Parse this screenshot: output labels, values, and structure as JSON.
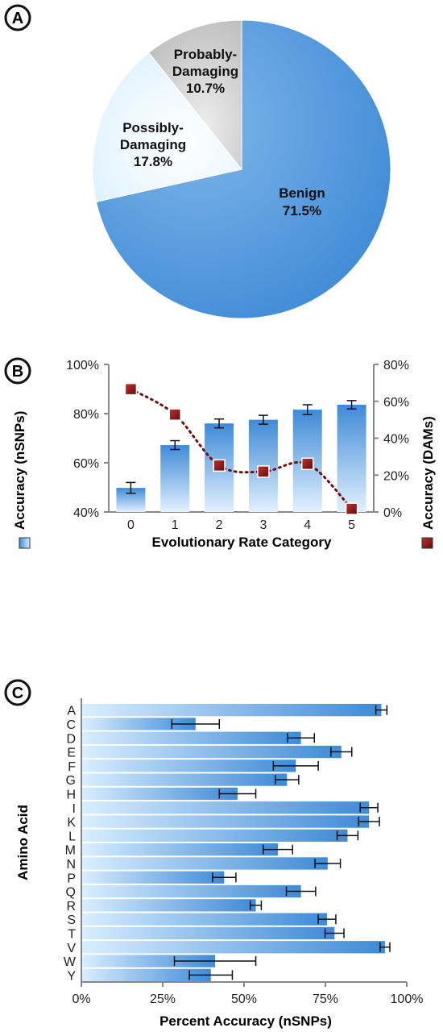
{
  "panel_labels": [
    "A",
    "B",
    "C"
  ],
  "colors": {
    "blue_dark": "#3f8ad6",
    "blue_light": "#dcefff",
    "pale": "#e6f5ff",
    "grey": "#c6c6c6",
    "red": "#8b1a1a",
    "axis": "#888888"
  },
  "chart_data": [
    {
      "type": "pie",
      "slices": [
        {
          "label_line1": "Benign",
          "label_line2": "71.5%",
          "value": 71.5
        },
        {
          "label_line1": "Possibly-",
          "label_line2": "Damaging",
          "label_line3": "17.8%",
          "value": 17.8
        },
        {
          "label_line1": "Probably-",
          "label_line2": "Damaging",
          "label_line3": "10.7%",
          "value": 10.7
        }
      ]
    },
    {
      "type": "bar",
      "categories": [
        "0",
        "1",
        "2",
        "3",
        "4",
        "5"
      ],
      "xlabel": "Evolutionary Rate Category",
      "left_axis": {
        "label": "Accuracy (nSNPs)",
        "ylim": [
          40,
          100
        ],
        "ticks": [
          40,
          60,
          80,
          100
        ],
        "tick_labels": [
          "40%",
          "60%",
          "80%",
          "100%"
        ]
      },
      "right_axis": {
        "label": "Accuracy (DAMs)",
        "ylim": [
          0,
          80
        ],
        "ticks": [
          0,
          20,
          40,
          60,
          80
        ],
        "tick_labels": [
          "0%",
          "20%",
          "40%",
          "60%",
          "80%"
        ]
      },
      "series": [
        {
          "name": "Accuracy (nSNPs)",
          "type": "bar",
          "values": [
            49.8,
            67.2,
            76.0,
            77.5,
            81.6,
            83.6
          ],
          "errors": [
            2.2,
            1.8,
            1.8,
            1.8,
            2.0,
            1.7
          ]
        },
        {
          "name": "Accuracy (DAMs)",
          "type": "line",
          "values": [
            66.6,
            52.8,
            25.2,
            21.9,
            26.1,
            1.7
          ]
        }
      ]
    },
    {
      "type": "bar",
      "orientation": "horizontal",
      "ylabel": "Amino Acid",
      "xlabel": "Percent Accuracy (nSNPs)",
      "xlim": [
        0,
        100
      ],
      "ticks": [
        0,
        25,
        50,
        75,
        100
      ],
      "tick_labels": [
        "0%",
        "25%",
        "50%",
        "75%",
        "100%"
      ],
      "categories": [
        "A",
        "C",
        "D",
        "E",
        "F",
        "G",
        "H",
        "I",
        "K",
        "L",
        "M",
        "N",
        "P",
        "Q",
        "R",
        "S",
        "T",
        "V",
        "W",
        "Y"
      ],
      "values": [
        92.2,
        35.1,
        67.5,
        79.9,
        65.9,
        63.2,
        48.0,
        88.4,
        88.4,
        81.8,
        60.4,
        75.7,
        43.9,
        67.5,
        53.6,
        75.5,
        77.8,
        93.3,
        41.1,
        39.8
      ],
      "errors": [
        1.7,
        7.3,
        4.1,
        3.2,
        6.9,
        3.6,
        5.6,
        2.7,
        3.2,
        3.2,
        4.5,
        3.9,
        3.6,
        4.5,
        1.7,
        2.7,
        2.9,
        1.5,
        12.5,
        6.6
      ]
    }
  ]
}
